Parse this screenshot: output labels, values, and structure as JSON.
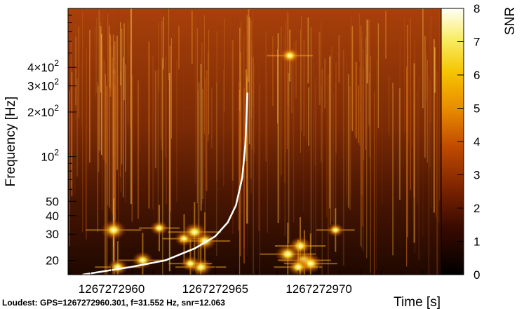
{
  "chart_data": {
    "type": "heatmap",
    "title": "",
    "xlabel": "Time [s]",
    "ylabel": "Frequency [Hz]",
    "colorbar_label": "SNR",
    "xlim": [
      1267272957.9,
      1267272975.9
    ],
    "ylim": [
      16,
      1000
    ],
    "y_scale": "log",
    "color_range": [
      0,
      8
    ],
    "x_ticks": [
      {
        "value": 1267272960,
        "label": "1267272960"
      },
      {
        "value": 1267272965,
        "label": "1267272965"
      },
      {
        "value": 1267272970,
        "label": "1267272970"
      }
    ],
    "y_ticks": [
      {
        "value": 20,
        "label": "20"
      },
      {
        "value": 30,
        "label": "30"
      },
      {
        "value": 40,
        "label": "40"
      },
      {
        "value": 50,
        "label": "50"
      },
      {
        "value": 100,
        "label": "10",
        "exp": "2"
      },
      {
        "value": 200,
        "label": "2×10",
        "exp": "2"
      },
      {
        "value": 300,
        "label": "3×10",
        "exp": "2"
      },
      {
        "value": 400,
        "label": "4×10",
        "exp": "2"
      }
    ],
    "colorbar_ticks": [
      {
        "value": 0,
        "label": "0"
      },
      {
        "value": 1,
        "label": "1"
      },
      {
        "value": 2,
        "label": "2"
      },
      {
        "value": 3,
        "label": "3"
      },
      {
        "value": 4,
        "label": "4"
      },
      {
        "value": 5,
        "label": "5"
      },
      {
        "value": 6,
        "label": "6"
      },
      {
        "value": 7,
        "label": "7"
      },
      {
        "value": 8,
        "label": "8"
      }
    ],
    "hotspots": [
      {
        "t": 1267272960.1,
        "f": 32,
        "snr": 7.5
      },
      {
        "t": 1267272960.3,
        "f": 18,
        "snr": 5.5
      },
      {
        "t": 1267272961.5,
        "f": 20,
        "snr": 6
      },
      {
        "t": 1267272962.3,
        "f": 33,
        "snr": 4.5
      },
      {
        "t": 1267272963.5,
        "f": 28,
        "snr": 5
      },
      {
        "t": 1267272964.0,
        "f": 31,
        "snr": 7
      },
      {
        "t": 1267272964.5,
        "f": 27,
        "snr": 6.5
      },
      {
        "t": 1267272964.3,
        "f": 18,
        "snr": 6.5
      },
      {
        "t": 1267272963.8,
        "f": 19,
        "snr": 5
      },
      {
        "t": 1267272968.5,
        "f": 22,
        "snr": 7.5
      },
      {
        "t": 1267272969.1,
        "f": 25,
        "snr": 6.5
      },
      {
        "t": 1267272969.3,
        "f": 20,
        "snr": 7
      },
      {
        "t": 1267272969.6,
        "f": 19,
        "snr": 7
      },
      {
        "t": 1267272969.0,
        "f": 18,
        "snr": 6
      },
      {
        "t": 1267272970.8,
        "f": 32,
        "snr": 4
      },
      {
        "t": 1267272968.6,
        "f": 480,
        "snr": 5.5
      }
    ],
    "chirp_track": {
      "color": "#ffffff",
      "points": [
        {
          "t": 1267272958.6,
          "f": 16
        },
        {
          "t": 1267272960.9,
          "f": 18
        },
        {
          "t": 1267272962.6,
          "f": 20
        },
        {
          "t": 1267272964.0,
          "f": 24
        },
        {
          "t": 1267272965.0,
          "f": 29
        },
        {
          "t": 1267272965.6,
          "f": 36
        },
        {
          "t": 1267272966.0,
          "f": 47
        },
        {
          "t": 1267272966.3,
          "f": 72
        },
        {
          "t": 1267272966.45,
          "f": 120
        },
        {
          "t": 1267272966.55,
          "f": 270
        }
      ]
    },
    "footer": "Loudest: GPS=1267272960.301, f=31.552 Hz, snr=12.063"
  }
}
